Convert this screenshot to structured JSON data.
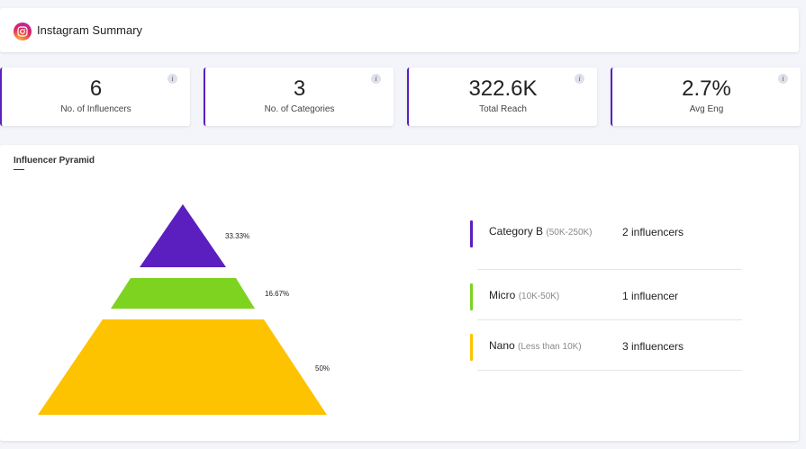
{
  "header": {
    "title": "Instagram Summary",
    "icon": "instagram-icon"
  },
  "stats": [
    {
      "value": "6",
      "label": "No. of Influencers",
      "info": "i"
    },
    {
      "value": "3",
      "label": "No. of Categories",
      "info": "i"
    },
    {
      "value": "322.6K",
      "label": "Total Reach",
      "info": "i"
    },
    {
      "value": "2.7%",
      "label": "Avg Eng",
      "info": "i"
    }
  ],
  "pyramid": {
    "title": "Influencer Pyramid",
    "levels": [
      {
        "name": "Category B",
        "range": "(50K-250K)",
        "count": "2 influencers",
        "percent": "33.33%",
        "color": "#5b1fbf"
      },
      {
        "name": "Micro",
        "range": "(10K-50K)",
        "count": "1 influencer",
        "percent": "16.67%",
        "color": "#7ed321"
      },
      {
        "name": "Nano",
        "range": "(Less than 10K)",
        "count": "3 influencers",
        "percent": "50%",
        "color": "#fdc300"
      }
    ]
  },
  "colors": {
    "accent": "#5b1fbf",
    "background": "#f4f5fa"
  }
}
